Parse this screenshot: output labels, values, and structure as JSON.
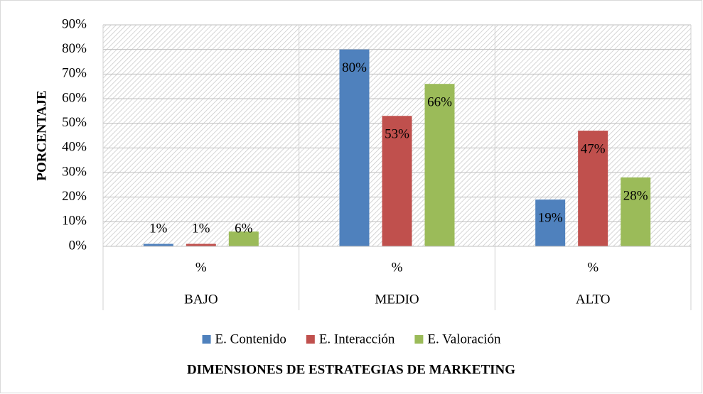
{
  "chart_data": {
    "type": "bar",
    "y_label": "PORCENTAJE",
    "x_label": "DIMENSIONES DE ESTRATEGIAS DE MARKETING",
    "categories": [
      "BAJO",
      "MEDIO",
      "ALTO"
    ],
    "subcategories": [
      "%",
      "%",
      "%"
    ],
    "series": [
      {
        "name": "E. Contenido",
        "color": "#4f81bd",
        "values": [
          1,
          80,
          19
        ],
        "value_labels": [
          "1%",
          "80%",
          "19%"
        ]
      },
      {
        "name": "E. Interacción",
        "color": "#c0504d",
        "values": [
          1,
          53,
          47
        ],
        "value_labels": [
          "1%",
          "53%",
          "47%"
        ]
      },
      {
        "name": "E. Valoración",
        "color": "#9bbb59",
        "values": [
          6,
          66,
          28
        ],
        "value_labels": [
          "6%",
          "66%",
          "28%"
        ]
      }
    ],
    "ylim": [
      0,
      90
    ],
    "yticks": [
      {
        "value": 0,
        "label": "0%"
      },
      {
        "value": 10,
        "label": "10%"
      },
      {
        "value": 20,
        "label": "20%"
      },
      {
        "value": 30,
        "label": "30%"
      },
      {
        "value": 40,
        "label": "40%"
      },
      {
        "value": 50,
        "label": "50%"
      },
      {
        "value": 60,
        "label": "60%"
      },
      {
        "value": 70,
        "label": "70%"
      },
      {
        "value": 80,
        "label": "80%"
      },
      {
        "value": 90,
        "label": "90%"
      }
    ],
    "grid": true,
    "legend": "bottom"
  }
}
